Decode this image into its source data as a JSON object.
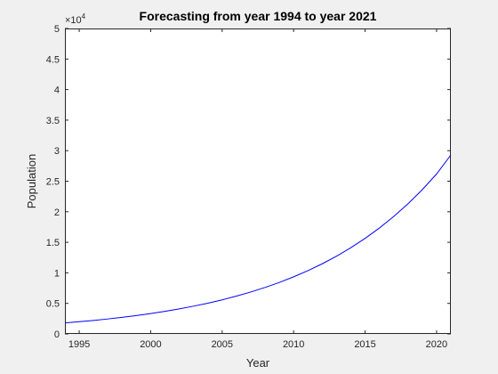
{
  "chart_data": {
    "type": "line",
    "title": "Forecasting from year 1994 to year 2021",
    "xlabel": "Year",
    "ylabel": "Population",
    "xlim": [
      1994,
      2021
    ],
    "ylim": [
      0,
      50000
    ],
    "y_exponent_label": "×10",
    "y_exponent_power": "4",
    "x_ticks": [
      1995,
      2000,
      2005,
      2010,
      2015,
      2020
    ],
    "x_tick_labels": [
      "1995",
      "2000",
      "2005",
      "2010",
      "2015",
      "2020"
    ],
    "y_ticks": [
      0,
      5000,
      10000,
      15000,
      20000,
      25000,
      30000,
      35000,
      40000,
      45000,
      50000
    ],
    "y_tick_labels": [
      "0",
      "0.5",
      "1",
      "1.5",
      "2",
      "2.5",
      "3",
      "3.5",
      "4",
      "4.5",
      "5"
    ],
    "grid": false,
    "legend": false,
    "series": [
      {
        "color": "#0000ff",
        "x": [
          1994,
          1995,
          1996,
          1997,
          1998,
          1999,
          2000,
          2001,
          2002,
          2003,
          2004,
          2005,
          2006,
          2007,
          2008,
          2009,
          2010,
          2011,
          2012,
          2013,
          2014,
          2015,
          2016,
          2017,
          2018,
          2019,
          2020,
          2021
        ],
        "y": [
          1800,
          1995,
          2210,
          2450,
          2715,
          3010,
          3335,
          3700,
          4100,
          4545,
          5035,
          5580,
          6190,
          6860,
          7605,
          8430,
          9345,
          10360,
          11480,
          12730,
          14110,
          15640,
          17340,
          19220,
          21305,
          23620,
          26185,
          29300
        ]
      }
    ]
  }
}
